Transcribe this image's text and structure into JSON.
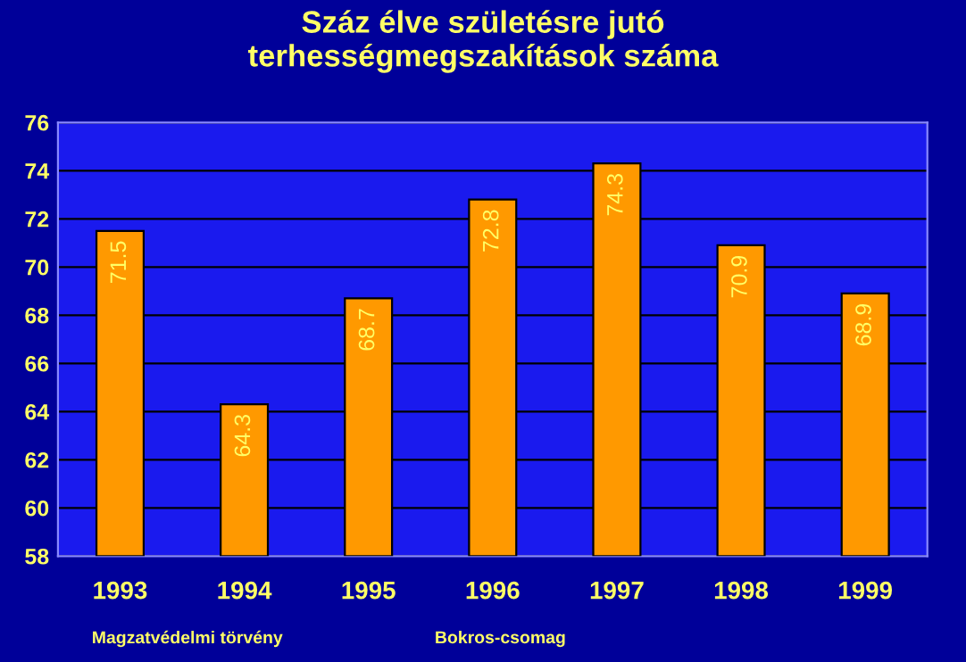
{
  "chart_data": {
    "type": "bar",
    "title": "Száz élve születésre jutó\nterhességmegszakítások száma",
    "categories": [
      "1993",
      "1994",
      "1995",
      "1996",
      "1997",
      "1998",
      "1999"
    ],
    "values": [
      71.5,
      64.3,
      68.7,
      72.8,
      74.3,
      70.9,
      68.9
    ],
    "color": "#ff9900",
    "ylim": [
      58,
      76
    ],
    "yticks": [
      58,
      60,
      62,
      64,
      66,
      68,
      70,
      72,
      74,
      76
    ],
    "grid": "y",
    "data_labels": true,
    "legend": false,
    "annotations": [
      "Magzatvédelmi törvény",
      "Bokros-csomag"
    ]
  }
}
